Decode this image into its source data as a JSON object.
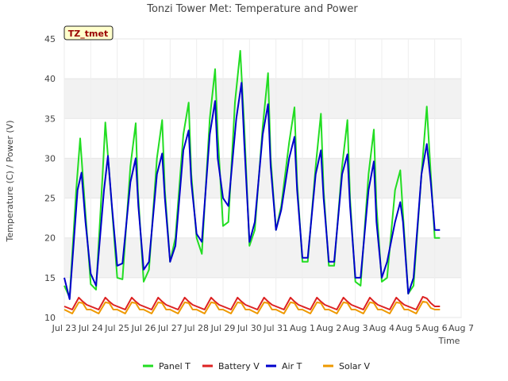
{
  "chart_data": {
    "type": "line",
    "title": "Tonzi Tower Met: Temperature and Power",
    "badge": "TZ_tmet",
    "xlabel": "Time",
    "ylabel": "Temperature (C) / Power (V)",
    "ylim": [
      10,
      45
    ],
    "yticks": [
      10,
      15,
      20,
      25,
      30,
      35,
      40,
      45
    ],
    "xlim": [
      0,
      15
    ],
    "xticks": [
      {
        "x": 0,
        "label": "Jul 23"
      },
      {
        "x": 1,
        "label": "Jul 24"
      },
      {
        "x": 2,
        "label": "Jul 25"
      },
      {
        "x": 3,
        "label": "Jul 26"
      },
      {
        "x": 4,
        "label": "Jul 27"
      },
      {
        "x": 5,
        "label": "Jul 28"
      },
      {
        "x": 6,
        "label": "Jul 29"
      },
      {
        "x": 7,
        "label": "Jul 30"
      },
      {
        "x": 8,
        "label": "Jul 31"
      },
      {
        "x": 9,
        "label": "Aug 1"
      },
      {
        "x": 10,
        "label": "Aug 2"
      },
      {
        "x": 11,
        "label": "Aug 3"
      },
      {
        "x": 12,
        "label": "Aug 4"
      },
      {
        "x": 13,
        "label": "Aug 5"
      },
      {
        "x": 14,
        "label": "Aug 6"
      },
      {
        "x": 15,
        "label": "Aug 7"
      }
    ],
    "grid": true,
    "legend_position": "bottom",
    "series": [
      {
        "name": "Panel T",
        "color": "#22dd22",
        "x": [
          0.0,
          0.2,
          0.45,
          0.6,
          0.78,
          1.0,
          1.2,
          1.45,
          1.55,
          1.75,
          2.0,
          2.2,
          2.5,
          2.7,
          2.78,
          3.0,
          3.2,
          3.5,
          3.7,
          3.8,
          4.0,
          4.2,
          4.5,
          4.7,
          4.8,
          5.0,
          5.2,
          5.5,
          5.7,
          5.8,
          6.0,
          6.2,
          6.45,
          6.65,
          6.8,
          7.0,
          7.2,
          7.5,
          7.7,
          7.8,
          8.0,
          8.2,
          8.5,
          8.7,
          8.8,
          9.0,
          9.2,
          9.5,
          9.7,
          9.8,
          10.0,
          10.2,
          10.5,
          10.7,
          10.8,
          11.0,
          11.2,
          11.5,
          11.7,
          11.8,
          12.0,
          12.2,
          12.5,
          12.7,
          12.8,
          13.0,
          13.2,
          13.5,
          13.7,
          13.85,
          14.0,
          14.2
        ],
        "y": [
          14.0,
          12.5,
          26.0,
          32.5,
          24.0,
          14.2,
          13.5,
          28.0,
          34.5,
          26.0,
          15.0,
          14.8,
          29.0,
          34.4,
          26.0,
          14.5,
          16.0,
          30.0,
          34.8,
          26.0,
          17.0,
          20.0,
          33.0,
          37.0,
          28.0,
          20.0,
          18.0,
          35.0,
          41.2,
          33.0,
          21.5,
          22.0,
          37.0,
          43.5,
          34.0,
          19.0,
          21.0,
          34.0,
          40.7,
          30.0,
          21.0,
          24.0,
          32.0,
          36.4,
          27.0,
          17.0,
          17.0,
          29.0,
          35.6,
          26.0,
          16.5,
          16.5,
          29.0,
          34.8,
          25.0,
          14.5,
          14.0,
          28.0,
          33.6,
          24.0,
          14.5,
          15.0,
          26.0,
          28.5,
          23.0,
          13.0,
          14.0,
          28.0,
          36.5,
          28.0,
          20.0,
          20.0
        ]
      },
      {
        "name": "Battery V",
        "color": "#dd2222",
        "x": [
          0.0,
          0.3,
          0.55,
          0.7,
          0.85,
          1.0,
          1.3,
          1.55,
          1.7,
          1.85,
          2.0,
          2.3,
          2.55,
          2.7,
          2.85,
          3.0,
          3.3,
          3.55,
          3.7,
          3.85,
          4.0,
          4.3,
          4.55,
          4.7,
          4.85,
          5.0,
          5.3,
          5.55,
          5.7,
          5.85,
          6.0,
          6.3,
          6.55,
          6.7,
          6.85,
          7.0,
          7.3,
          7.55,
          7.7,
          7.85,
          8.0,
          8.3,
          8.55,
          8.7,
          8.85,
          9.0,
          9.3,
          9.55,
          9.7,
          9.85,
          10.0,
          10.3,
          10.55,
          10.7,
          10.85,
          11.0,
          11.3,
          11.55,
          11.7,
          11.85,
          12.0,
          12.3,
          12.55,
          12.7,
          12.85,
          13.0,
          13.3,
          13.55,
          13.7,
          13.85,
          14.0,
          14.2
        ],
        "y": [
          11.4,
          11.0,
          12.5,
          12.0,
          11.6,
          11.4,
          11.0,
          12.5,
          12.0,
          11.6,
          11.4,
          11.0,
          12.5,
          12.0,
          11.6,
          11.4,
          11.0,
          12.5,
          12.0,
          11.6,
          11.4,
          11.0,
          12.5,
          12.0,
          11.6,
          11.4,
          11.0,
          12.5,
          12.0,
          11.6,
          11.4,
          11.0,
          12.5,
          12.0,
          11.6,
          11.4,
          11.0,
          12.5,
          12.0,
          11.6,
          11.4,
          11.0,
          12.5,
          12.0,
          11.6,
          11.4,
          11.0,
          12.5,
          12.0,
          11.6,
          11.4,
          11.0,
          12.5,
          12.0,
          11.6,
          11.4,
          11.0,
          12.5,
          12.0,
          11.6,
          11.4,
          11.0,
          12.5,
          12.0,
          11.6,
          11.4,
          11.0,
          12.6,
          12.4,
          11.8,
          11.4,
          11.4
        ]
      },
      {
        "name": "Air T",
        "color": "#0000cc",
        "x": [
          0.0,
          0.2,
          0.5,
          0.65,
          0.8,
          1.0,
          1.2,
          1.5,
          1.65,
          1.8,
          2.0,
          2.2,
          2.5,
          2.7,
          2.8,
          3.0,
          3.2,
          3.5,
          3.7,
          3.8,
          4.0,
          4.2,
          4.5,
          4.7,
          4.8,
          5.0,
          5.2,
          5.5,
          5.7,
          5.8,
          6.0,
          6.2,
          6.5,
          6.7,
          6.8,
          7.0,
          7.2,
          7.5,
          7.7,
          7.8,
          8.0,
          8.2,
          8.5,
          8.7,
          8.8,
          9.0,
          9.2,
          9.5,
          9.7,
          9.8,
          10.0,
          10.2,
          10.5,
          10.7,
          10.8,
          11.0,
          11.2,
          11.5,
          11.7,
          11.8,
          12.0,
          12.2,
          12.5,
          12.7,
          12.8,
          13.0,
          13.2,
          13.5,
          13.7,
          13.85,
          14.0,
          14.2
        ],
        "y": [
          15.0,
          12.3,
          26.0,
          28.2,
          22.0,
          15.5,
          14.0,
          26.0,
          30.3,
          24.0,
          16.5,
          16.8,
          27.0,
          30.0,
          24.0,
          16.0,
          17.0,
          28.0,
          30.6,
          25.0,
          17.0,
          19.0,
          31.0,
          33.5,
          27.0,
          20.5,
          19.5,
          33.0,
          37.2,
          30.0,
          25.0,
          24.0,
          35.0,
          39.5,
          32.0,
          19.5,
          22.0,
          33.0,
          36.8,
          29.0,
          21.0,
          23.5,
          30.0,
          32.7,
          26.0,
          17.5,
          17.5,
          28.0,
          31.0,
          25.0,
          17.0,
          17.0,
          28.0,
          30.5,
          24.0,
          15.0,
          15.0,
          26.0,
          29.6,
          22.0,
          15.0,
          17.0,
          22.0,
          24.5,
          22.0,
          13.0,
          15.0,
          28.0,
          31.8,
          27.0,
          21.0,
          21.0
        ]
      },
      {
        "name": "Solar V",
        "color": "#ee9900",
        "x": [
          0.0,
          0.3,
          0.55,
          0.7,
          0.85,
          1.0,
          1.3,
          1.55,
          1.7,
          1.85,
          2.0,
          2.3,
          2.55,
          2.7,
          2.85,
          3.0,
          3.3,
          3.55,
          3.7,
          3.85,
          4.0,
          4.3,
          4.55,
          4.7,
          4.85,
          5.0,
          5.3,
          5.55,
          5.7,
          5.85,
          6.0,
          6.3,
          6.55,
          6.7,
          6.85,
          7.0,
          7.3,
          7.55,
          7.7,
          7.85,
          8.0,
          8.3,
          8.55,
          8.7,
          8.85,
          9.0,
          9.3,
          9.55,
          9.7,
          9.85,
          10.0,
          10.3,
          10.55,
          10.7,
          10.85,
          11.0,
          11.3,
          11.55,
          11.7,
          11.85,
          12.0,
          12.3,
          12.55,
          12.7,
          12.85,
          13.0,
          13.3,
          13.55,
          13.7,
          13.85,
          14.0,
          14.2
        ],
        "y": [
          11.0,
          10.5,
          11.9,
          11.8,
          11.0,
          11.0,
          10.5,
          11.9,
          11.8,
          11.0,
          11.0,
          10.5,
          11.9,
          11.8,
          11.0,
          11.0,
          10.5,
          11.9,
          11.8,
          11.0,
          11.0,
          10.5,
          11.9,
          11.8,
          11.0,
          11.0,
          10.5,
          11.9,
          11.8,
          11.0,
          11.0,
          10.5,
          11.9,
          11.8,
          11.0,
          11.0,
          10.5,
          11.9,
          11.8,
          11.0,
          11.0,
          10.5,
          11.9,
          11.8,
          11.0,
          11.0,
          10.5,
          11.9,
          11.8,
          11.0,
          11.0,
          10.5,
          11.9,
          11.8,
          11.0,
          11.0,
          10.5,
          11.9,
          11.8,
          11.0,
          11.0,
          10.5,
          11.9,
          11.8,
          11.0,
          11.0,
          10.5,
          12.0,
          11.9,
          11.2,
          11.0,
          11.0
        ]
      }
    ]
  }
}
